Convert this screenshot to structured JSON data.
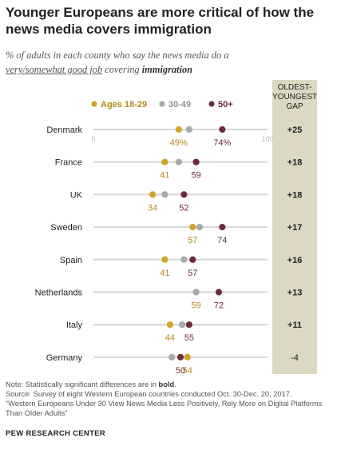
{
  "title": "Younger Europeans are more critical of how the news media covers immigration",
  "subtitle": {
    "part1": "% of adults in each county who say the news media do a ",
    "underlined": "very/somewhat good job",
    "part2": " covering ",
    "bold": "immigration"
  },
  "gap_header": "OLDEST-YOUNGEST GAP",
  "chart_data": {
    "type": "dot-plot",
    "xlim": [
      0,
      100
    ],
    "axis_ticks": [
      "0",
      "100"
    ],
    "legend": [
      {
        "label": "Ages 18-29",
        "color": "#d1a32a"
      },
      {
        "label": "30-49",
        "color": "#a7a9ac"
      },
      {
        "label": "50+",
        "color": "#6f2b3a"
      }
    ],
    "categories": [
      "Denmark",
      "France",
      "UK",
      "Sweden",
      "Spain",
      "Netherlands",
      "Italy",
      "Germany"
    ],
    "series": [
      {
        "name": "Ages 18-29",
        "values": [
          49,
          41,
          34,
          57,
          41,
          59,
          44,
          54
        ]
      },
      {
        "name": "30-49",
        "values": [
          55,
          49,
          41,
          61,
          52,
          59,
          51,
          45
        ]
      },
      {
        "name": "50+",
        "values": [
          74,
          59,
          52,
          74,
          57,
          72,
          55,
          50
        ]
      }
    ],
    "gaps": [
      "+25",
      "+18",
      "+18",
      "+17",
      "+16",
      "+13",
      "+11",
      "-4"
    ],
    "value_labels": {
      "young": [
        "49%",
        "41",
        "34",
        "57",
        "41",
        "59",
        "44",
        "54"
      ],
      "old": [
        "74%",
        "59",
        "52",
        "74",
        "57",
        "72",
        "55",
        "50"
      ]
    }
  },
  "footer": {
    "note_prefix": "Note: Statistically significant differences are in ",
    "note_bold": "bold",
    "note_suffix": ".",
    "source": "Source: Survey of eight Western European countries conducted Oct. 30-Dec. 20, 2017.",
    "report": "“Western Europeans Under 30 View News Media Less Positively, Rely More on Digital Platforms Than Older Adults”"
  },
  "brand": "PEW RESEARCH CENTER",
  "colors": {
    "young": "#d1a32a",
    "mid": "#a7a9ac",
    "old": "#6f2b3a",
    "gap_column": "#ddd8c4",
    "line": "#d6d6d6"
  }
}
